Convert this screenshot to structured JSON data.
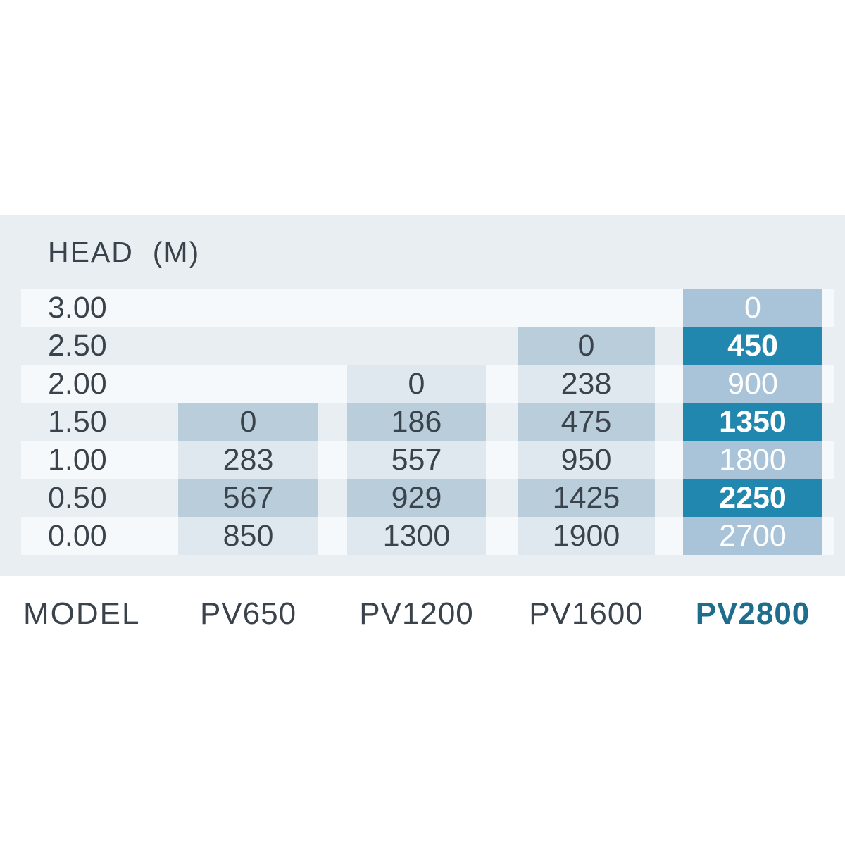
{
  "table": {
    "title": "HEAD  (M)",
    "model_label": "MODEL",
    "models": [
      "PV650",
      "PV1200",
      "PV1600",
      "PV2800"
    ],
    "highlighted_model": "PV2800",
    "rows": [
      {
        "head": "3.00",
        "values": [
          "",
          "",
          "",
          "0"
        ]
      },
      {
        "head": "2.50",
        "values": [
          "",
          "",
          "0",
          "450"
        ]
      },
      {
        "head": "2.00",
        "values": [
          "",
          "0",
          "238",
          "900"
        ]
      },
      {
        "head": "1.50",
        "values": [
          "0",
          "186",
          "475",
          "1350"
        ]
      },
      {
        "head": "1.00",
        "values": [
          "283",
          "557",
          "950",
          "1800"
        ]
      },
      {
        "head": "0.50",
        "values": [
          "567",
          "929",
          "1425",
          "2250"
        ]
      },
      {
        "head": "0.00",
        "values": [
          "850",
          "1300",
          "1900",
          "2700"
        ]
      }
    ]
  },
  "colors": {
    "panel": "#e9eef2",
    "stripe": "#f5f9fb",
    "cell_light": "#dfe8ee",
    "cell_medium": "#b9cdda",
    "pv2800_light": "#a9c4d8",
    "pv2800_dark": "#2187ae",
    "text": "#3a434b",
    "model_accent": "#1e6d8d",
    "cell_text_on_blue": "#ffffff"
  },
  "chart_data": {
    "type": "table",
    "title": "HEAD (M)",
    "row_axis_label": "HEAD (M)",
    "column_axis_label": "MODEL",
    "head_m": [
      3.0,
      2.5,
      2.0,
      1.5,
      1.0,
      0.5,
      0.0
    ],
    "models": [
      "PV650",
      "PV1200",
      "PV1600",
      "PV2800"
    ],
    "series": [
      {
        "name": "PV650",
        "values": [
          null,
          null,
          null,
          0,
          283,
          567,
          850
        ]
      },
      {
        "name": "PV1200",
        "values": [
          null,
          null,
          0,
          186,
          557,
          929,
          1300
        ]
      },
      {
        "name": "PV1600",
        "values": [
          null,
          0,
          238,
          475,
          950,
          1425,
          1900
        ]
      },
      {
        "name": "PV2800",
        "values": [
          0,
          450,
          900,
          1350,
          1800,
          2250,
          2700
        ]
      }
    ],
    "highlighted_series": "PV2800",
    "layout": "striped rows, highlighted last column in teal/blue"
  }
}
